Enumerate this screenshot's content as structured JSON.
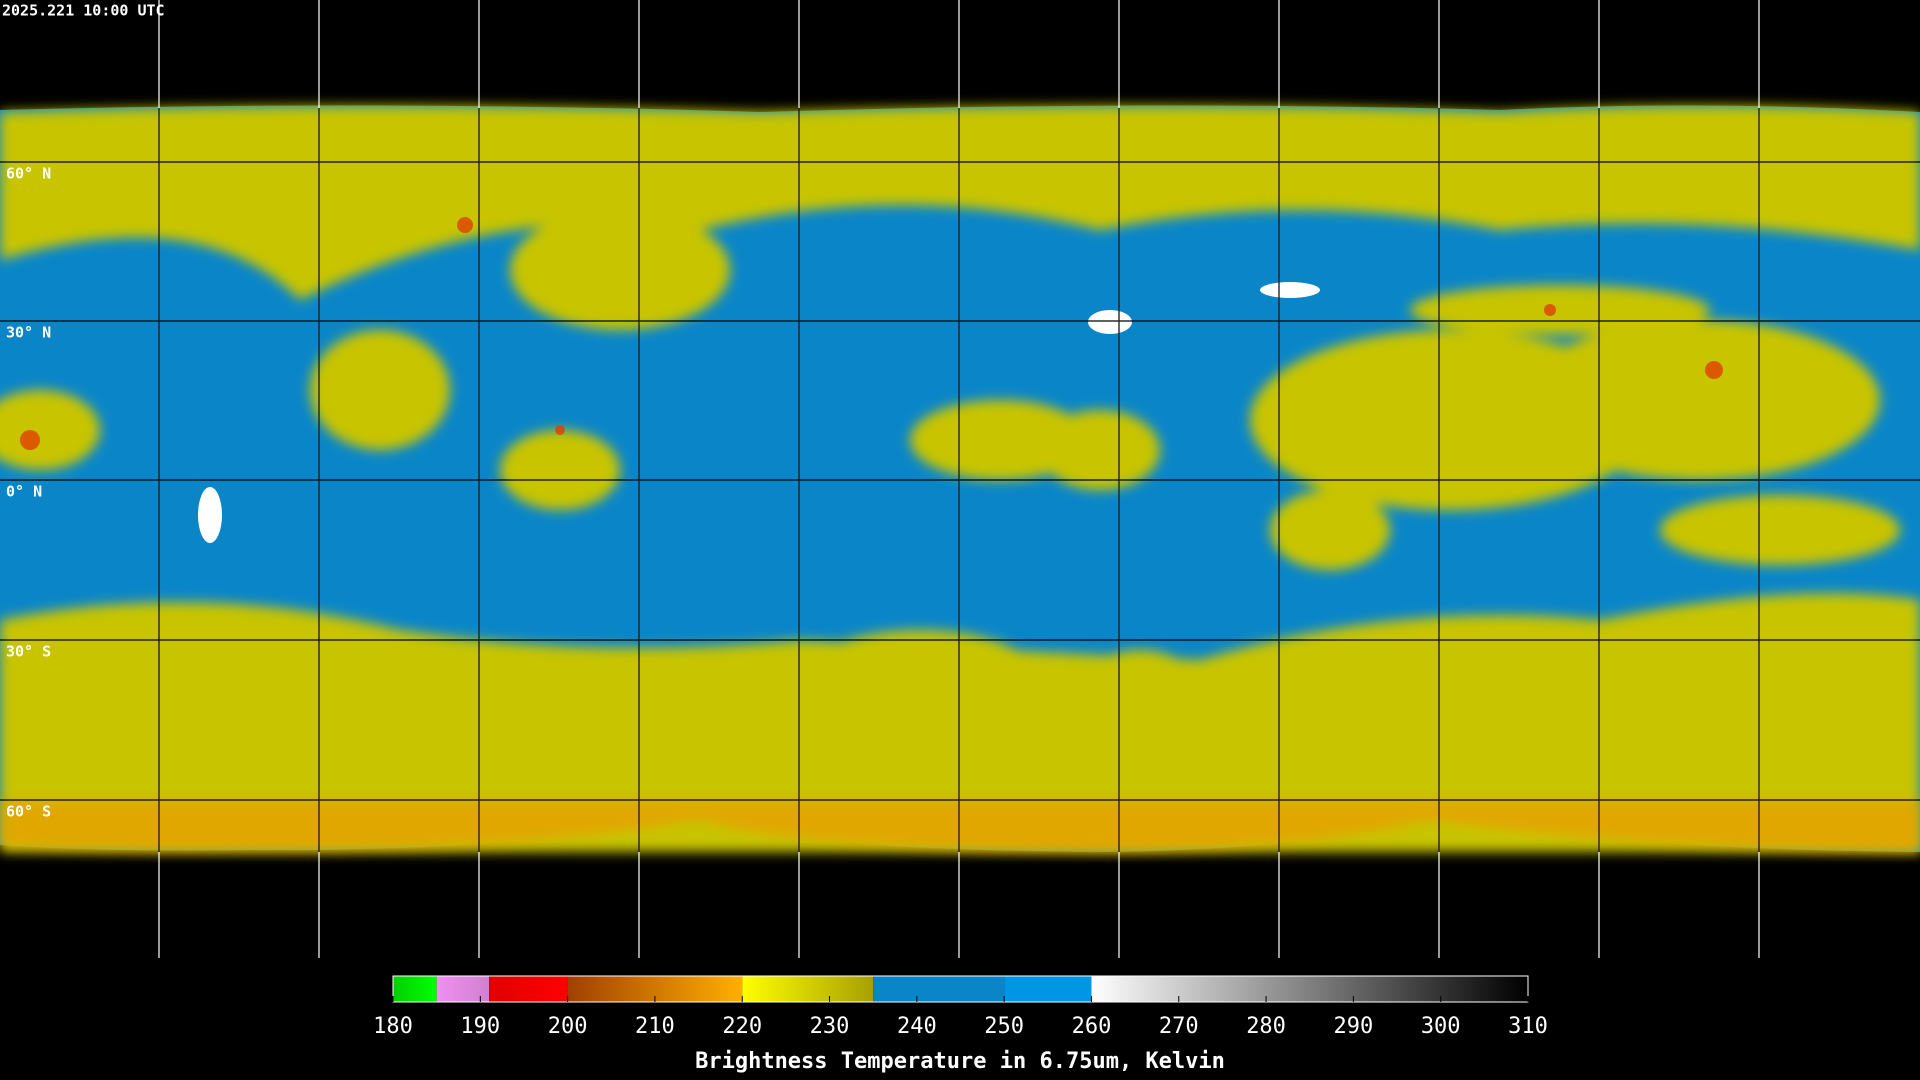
{
  "header": {
    "timestamp": "2025.221 10:00 UTC"
  },
  "map": {
    "lat_labels": [
      "60° N",
      "30° N",
      "0° N",
      "30° S",
      "60° S"
    ]
  },
  "colorbar": {
    "lim": [
      180,
      310
    ],
    "ticks": [
      180,
      190,
      200,
      210,
      220,
      230,
      240,
      250,
      260,
      270,
      280,
      290,
      300,
      310
    ],
    "stops": [
      {
        "from": 180,
        "to": 185,
        "colors": [
          "#00d000",
          "#00ff00"
        ]
      },
      {
        "from": 185,
        "to": 191,
        "colors": [
          "#f090f0",
          "#d080d0"
        ]
      },
      {
        "from": 191,
        "to": 200,
        "colors": [
          "#e00000",
          "#ff0000"
        ]
      },
      {
        "from": 200,
        "to": 220,
        "colors": [
          "#a04000",
          "#ffb000"
        ]
      },
      {
        "from": 220,
        "to": 235,
        "colors": [
          "#ffff00",
          "#a8a000"
        ]
      },
      {
        "from": 235,
        "to": 250,
        "colors": [
          "#0a86c8",
          "#0a86c8"
        ]
      },
      {
        "from": 250,
        "to": 260,
        "colors": [
          "#0096e6",
          "#0096e6"
        ]
      },
      {
        "from": 260,
        "to": 310,
        "colors": [
          "#ffffff",
          "#000000"
        ]
      }
    ],
    "title": "Brightness Temperature in 6.75um, Kelvin"
  }
}
